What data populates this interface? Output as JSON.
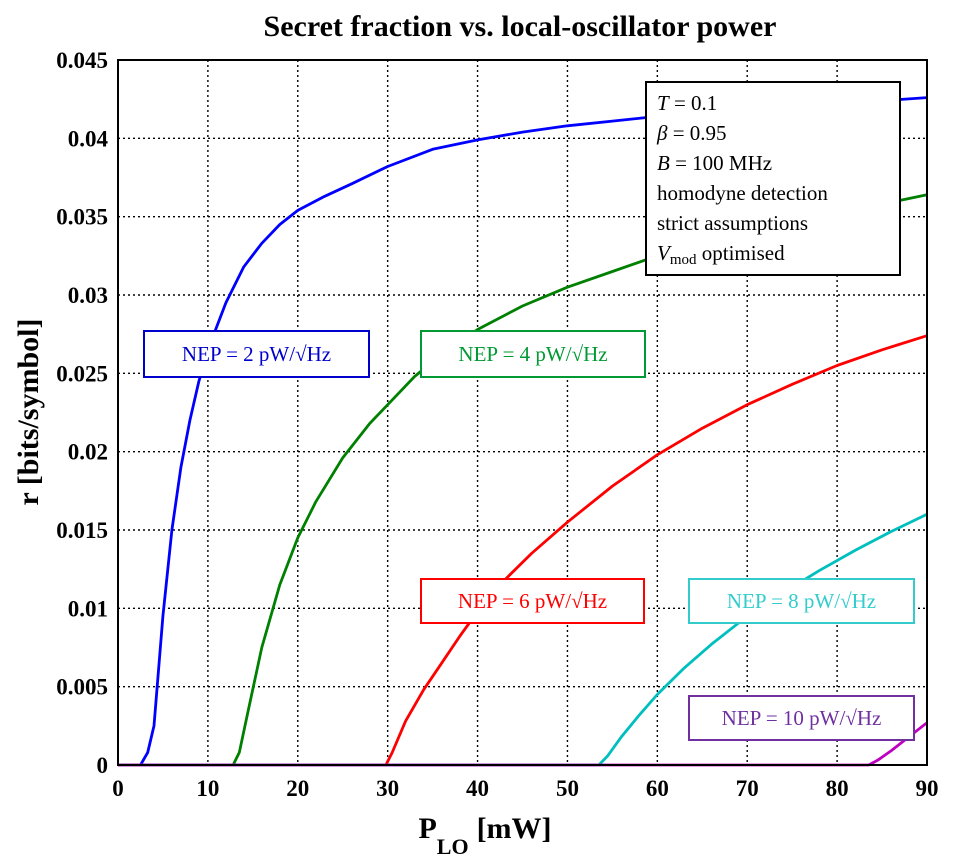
{
  "chart_data": {
    "type": "line",
    "title": "Secret fraction vs. local-oscillator power",
    "xlabel": "P",
    "xlabel_sub": "LO",
    "xlabel_unit": "[mW]",
    "ylabel": "r [bits/symbol]",
    "xlim": [
      0,
      90
    ],
    "ylim": [
      0,
      0.045
    ],
    "xticks": [
      "0",
      "10",
      "20",
      "30",
      "40",
      "50",
      "60",
      "70",
      "80",
      "90"
    ],
    "yticks": [
      "0",
      "0.005",
      "0.01",
      "0.015",
      "0.02",
      "0.025",
      "0.03",
      "0.035",
      "0.04",
      "0.045"
    ],
    "grid": true,
    "series": [
      {
        "name": "NEP = 2 pW/√Hz",
        "color": "#0000ff",
        "x": [
          0,
          2.5,
          3.3,
          4,
          5,
          6,
          7,
          8,
          9,
          10,
          12,
          14,
          16,
          18,
          20,
          23,
          26,
          30,
          35,
          40,
          45,
          50,
          55,
          60,
          65,
          70,
          75,
          80,
          85,
          90
        ],
        "y": [
          0,
          0,
          0.0008,
          0.0025,
          0.0095,
          0.015,
          0.019,
          0.022,
          0.0245,
          0.0265,
          0.0295,
          0.0318,
          0.0333,
          0.0345,
          0.0354,
          0.0363,
          0.0371,
          0.0382,
          0.0393,
          0.0399,
          0.0404,
          0.0408,
          0.0411,
          0.0414,
          0.0417,
          0.0419,
          0.0421,
          0.0423,
          0.0424,
          0.0426
        ]
      },
      {
        "name": "NEP = 4 pW/√Hz",
        "color": "#008000",
        "x": [
          0,
          12.8,
          13.5,
          14.5,
          16,
          18,
          20,
          22,
          25,
          28,
          30,
          33,
          36,
          40,
          45,
          50,
          55,
          60,
          65,
          70,
          75,
          80,
          85,
          90
        ],
        "y": [
          0,
          0,
          0.0008,
          0.0035,
          0.0075,
          0.0115,
          0.0145,
          0.0168,
          0.0196,
          0.0218,
          0.023,
          0.0248,
          0.0262,
          0.0278,
          0.0293,
          0.0305,
          0.0315,
          0.0325,
          0.0333,
          0.034,
          0.0347,
          0.0353,
          0.0358,
          0.0364
        ]
      },
      {
        "name": "NEP = 6 pW/√Hz",
        "color": "#ff0000",
        "x": [
          0,
          29.8,
          30.5,
          32,
          34,
          36,
          38,
          40,
          43,
          46,
          50,
          55,
          60,
          65,
          70,
          75,
          80,
          85,
          90
        ],
        "y": [
          0,
          0,
          0.0008,
          0.0028,
          0.0048,
          0.0065,
          0.0082,
          0.0098,
          0.0118,
          0.0135,
          0.0155,
          0.0178,
          0.0198,
          0.0215,
          0.023,
          0.0243,
          0.0255,
          0.0265,
          0.0274
        ]
      },
      {
        "name": "NEP = 8 pW/√Hz",
        "color": "#00bfbf",
        "x": [
          0,
          53.5,
          54.5,
          56,
          58,
          60,
          63,
          66,
          70,
          74,
          78,
          82,
          86,
          90
        ],
        "y": [
          0,
          0,
          0.0006,
          0.0018,
          0.0032,
          0.0045,
          0.0062,
          0.0077,
          0.0095,
          0.011,
          0.0124,
          0.0137,
          0.0149,
          0.016
        ]
      },
      {
        "name": "NEP = 10 pW/√Hz",
        "color": "#bf00bf",
        "x": [
          0,
          83.5,
          84.5,
          86,
          88,
          90
        ],
        "y": [
          0,
          0,
          0.0003,
          0.0009,
          0.0018,
          0.0027
        ]
      }
    ],
    "annotation_lines": [
      {
        "prefix": "",
        "sym": "T",
        "suffix": " = 0.1"
      },
      {
        "prefix": "",
        "sym": "β",
        "suffix": " = 0.95"
      },
      {
        "prefix": "",
        "sym": "B",
        "suffix": " = 100 MHz"
      },
      {
        "prefix": "homodyne detection",
        "sym": "",
        "suffix": ""
      },
      {
        "prefix": "strict assumptions",
        "sym": "",
        "suffix": ""
      }
    ],
    "annotation_vmod": {
      "sym": "V",
      "sub": "mod",
      "suffix": " optimised"
    }
  }
}
